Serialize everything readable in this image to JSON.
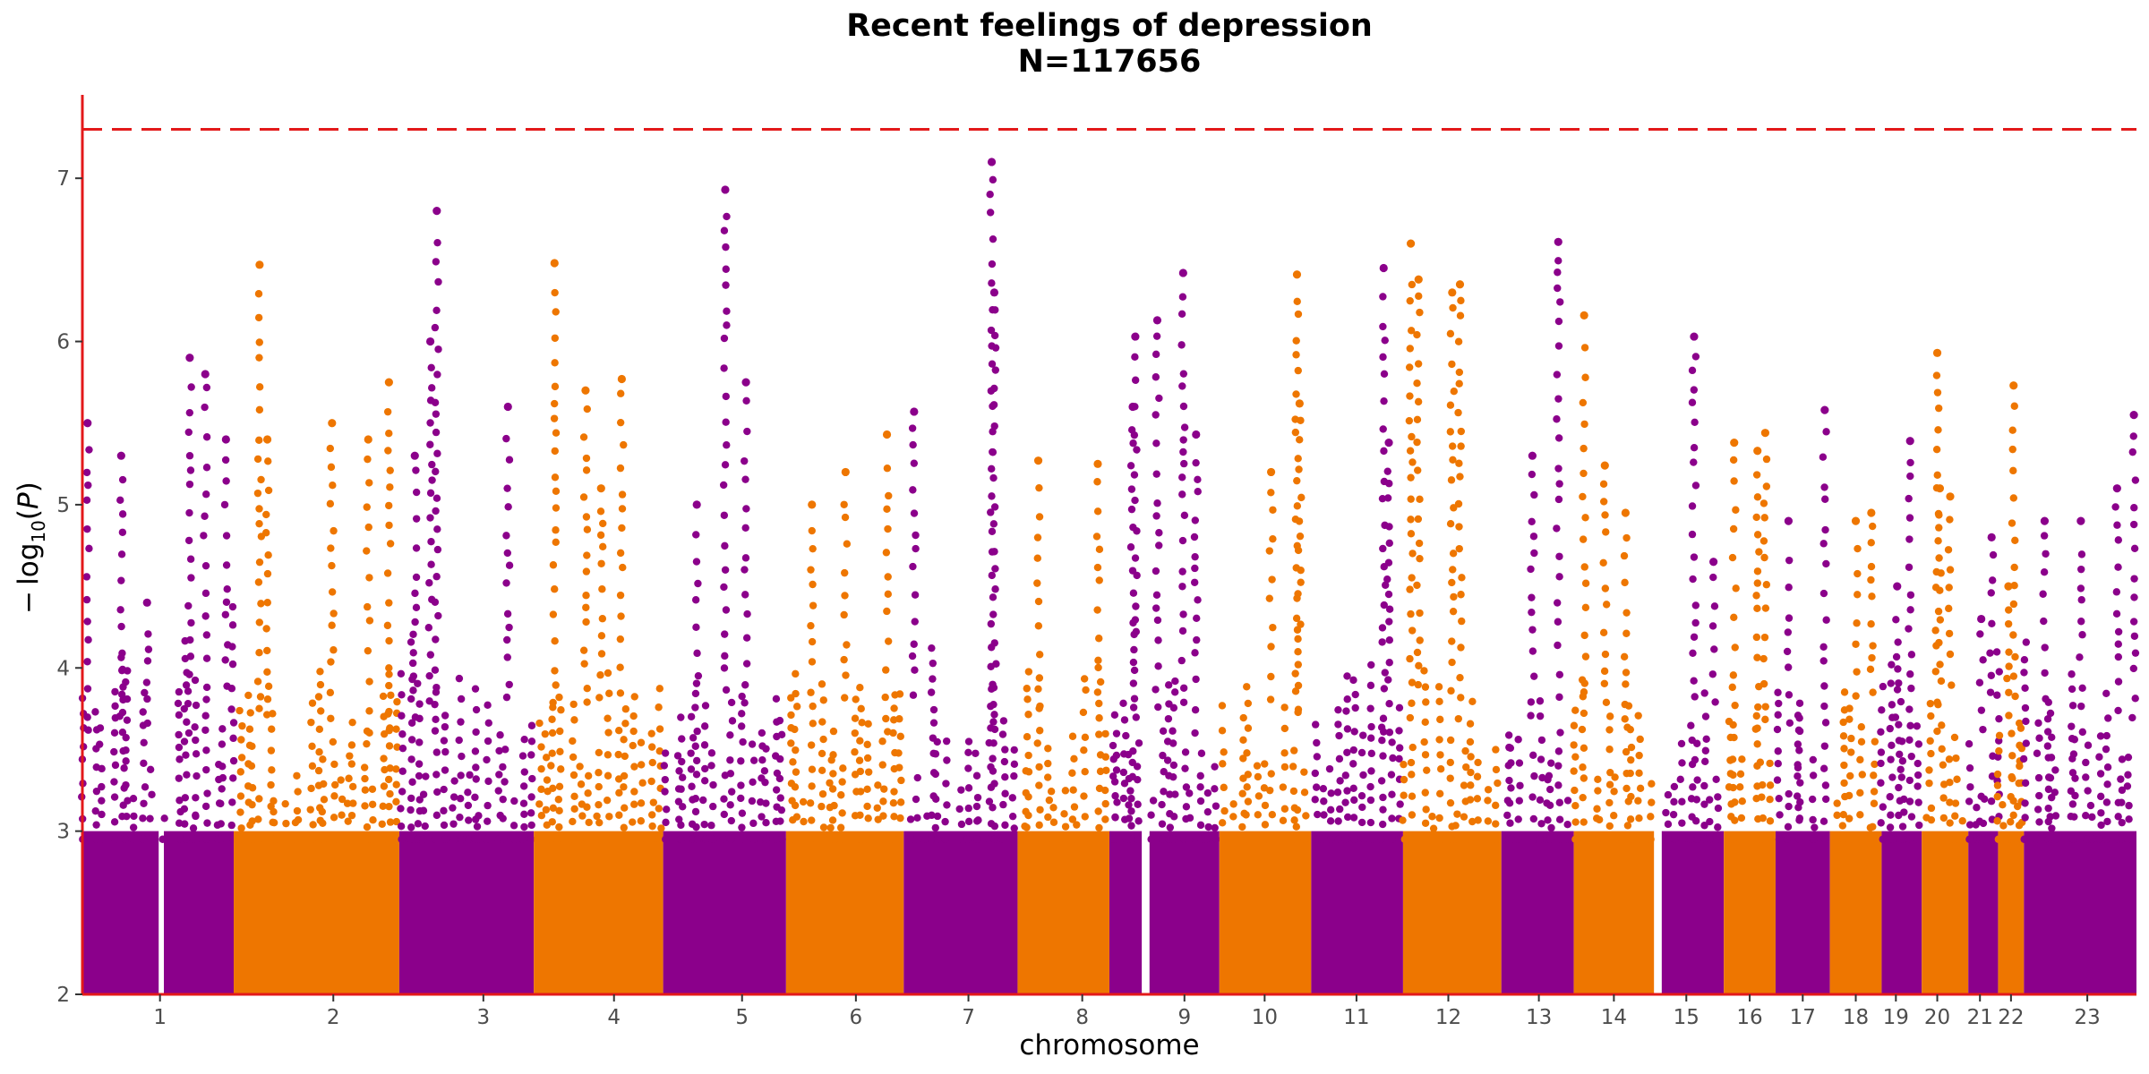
{
  "chart_data": {
    "type": "scatter",
    "title": "Recent feelings of depression",
    "subtitle": "N=117656",
    "xlabel": "chromosome",
    "ylabel": "-log10(P)",
    "ylim": [
      2,
      7.5
    ],
    "yticks": [
      2,
      3,
      4,
      5,
      6,
      7
    ],
    "threshold": 7.3,
    "grid": false,
    "legend": "none",
    "colors": {
      "odd": "#8b008b",
      "even": "#ee7600",
      "threshold": "#e3191a",
      "axis": "#e3191a"
    },
    "chromosomes": [
      {
        "label": "1",
        "start": 0,
        "end": 2.95,
        "peaks": [
          [
            0.2,
            5.5
          ],
          [
            1.5,
            5.3
          ],
          [
            2.5,
            4.4
          ]
        ],
        "color": "odd"
      },
      {
        "label": "2",
        "start": 3.15,
        "end": 5.85,
        "peaks": [
          [
            1.0,
            5.9
          ],
          [
            1.6,
            5.8
          ],
          [
            2.4,
            5.4
          ]
        ],
        "color": "odd"
      },
      {
        "label": "2",
        "start": 5.85,
        "end": 12.25,
        "peaks": [
          [
            1.0,
            6.47
          ],
          [
            1.3,
            5.4
          ],
          [
            3.8,
            5.5
          ],
          [
            5.2,
            5.4
          ],
          [
            6.0,
            5.75
          ]
        ],
        "color": "even"
      },
      {
        "label": "3",
        "start": 12.25,
        "end": 17.45,
        "peaks": [
          [
            0.6,
            5.3
          ],
          [
            1.2,
            6.0
          ],
          [
            1.45,
            6.8
          ],
          [
            4.2,
            5.6
          ]
        ],
        "color": "odd"
      },
      {
        "label": "4",
        "start": 17.45,
        "end": 22.45,
        "peaks": [
          [
            0.8,
            6.48
          ],
          [
            2.0,
            5.7
          ],
          [
            3.4,
            5.77
          ],
          [
            2.6,
            5.1
          ]
        ],
        "color": "even"
      },
      {
        "label": "5",
        "start": 22.45,
        "end": 27.2,
        "peaks": [
          [
            1.3,
            5.0
          ],
          [
            2.4,
            6.93
          ],
          [
            3.2,
            5.75
          ]
        ],
        "color": "odd"
      },
      {
        "label": "6",
        "start": 27.2,
        "end": 31.75,
        "peaks": [
          [
            1.0,
            5.0
          ],
          [
            2.3,
            5.2
          ],
          [
            3.9,
            5.43
          ]
        ],
        "color": "even"
      },
      {
        "label": "7",
        "start": 31.75,
        "end": 36.15,
        "peaks": [
          [
            0.4,
            5.57
          ],
          [
            3.4,
            7.1
          ],
          [
            3.5,
            6.3
          ]
        ],
        "color": "odd"
      },
      {
        "label": "8",
        "start": 36.15,
        "end": 39.7,
        "peaks": [
          [
            0.8,
            5.27
          ],
          [
            3.1,
            5.25
          ]
        ],
        "color": "even"
      },
      {
        "label": "8",
        "start": 39.7,
        "end": 40.95,
        "peaks": [
          [
            1.0,
            6.03
          ],
          [
            0.9,
            5.6
          ]
        ],
        "color": "odd"
      },
      {
        "label": "9",
        "start": 41.25,
        "end": 43.95,
        "peaks": [
          [
            0.3,
            6.13
          ],
          [
            1.3,
            6.42
          ],
          [
            1.8,
            5.43
          ]
        ],
        "color": "odd"
      },
      {
        "label": "10",
        "start": 43.95,
        "end": 47.5,
        "peaks": [
          [
            2.0,
            5.2
          ],
          [
            3.0,
            6.41
          ],
          [
            3.1,
            5.62
          ]
        ],
        "color": "even"
      },
      {
        "label": "11",
        "start": 47.5,
        "end": 51.05,
        "peaks": [
          [
            2.8,
            6.45
          ],
          [
            3.0,
            5.38
          ]
        ],
        "color": "odd"
      },
      {
        "label": "12",
        "start": 51.05,
        "end": 54.85,
        "peaks": [
          [
            0.3,
            6.6
          ],
          [
            0.6,
            6.38
          ],
          [
            1.9,
            6.3
          ],
          [
            2.2,
            6.35
          ]
        ],
        "color": "even"
      },
      {
        "label": "13",
        "start": 54.85,
        "end": 57.65,
        "peaks": [
          [
            1.2,
            5.3
          ],
          [
            2.2,
            6.61
          ]
        ],
        "color": "odd"
      },
      {
        "label": "14",
        "start": 57.65,
        "end": 60.75,
        "peaks": [
          [
            0.4,
            6.16
          ],
          [
            1.2,
            5.24
          ],
          [
            2.0,
            4.95
          ]
        ],
        "color": "even"
      },
      {
        "label": "15",
        "start": 61.05,
        "end": 63.45,
        "peaks": [
          [
            1.25,
            6.03
          ],
          [
            2.0,
            4.65
          ]
        ],
        "color": "odd"
      },
      {
        "label": "16",
        "start": 63.45,
        "end": 65.45,
        "peaks": [
          [
            0.4,
            5.38
          ],
          [
            1.3,
            5.33
          ],
          [
            1.6,
            5.44
          ]
        ],
        "color": "even"
      },
      {
        "label": "17",
        "start": 65.45,
        "end": 67.55,
        "peaks": [
          [
            0.5,
            4.9
          ],
          [
            1.9,
            5.58
          ]
        ],
        "color": "odd"
      },
      {
        "label": "18",
        "start": 67.55,
        "end": 69.55,
        "peaks": [
          [
            1.0,
            4.9
          ],
          [
            1.6,
            4.95
          ]
        ],
        "color": "even"
      },
      {
        "label": "19",
        "start": 69.55,
        "end": 71.1,
        "peaks": [
          [
            0.6,
            4.5
          ],
          [
            1.1,
            5.39
          ]
        ],
        "color": "odd"
      },
      {
        "label": "20",
        "start": 71.1,
        "end": 72.9,
        "peaks": [
          [
            0.6,
            5.93
          ],
          [
            0.7,
            5.1
          ],
          [
            1.1,
            5.05
          ]
        ],
        "color": "even"
      },
      {
        "label": "21",
        "start": 72.9,
        "end": 74.05,
        "peaks": [
          [
            0.5,
            4.3
          ],
          [
            0.9,
            4.8
          ]
        ],
        "color": "odd"
      },
      {
        "label": "22",
        "start": 74.05,
        "end": 75.05,
        "peaks": [
          [
            0.6,
            5.73
          ],
          [
            0.4,
            4.5
          ]
        ],
        "color": "even"
      },
      {
        "label": "23",
        "start": 75.05,
        "end": 79.4,
        "peaks": [
          [
            0.8,
            4.9
          ],
          [
            2.2,
            4.9
          ],
          [
            3.6,
            5.1
          ],
          [
            4.25,
            5.55
          ]
        ],
        "color": "odd"
      }
    ],
    "xticks": [
      {
        "label": "1",
        "x": 3.0
      },
      {
        "label": "2",
        "x": 9.7
      },
      {
        "label": "3",
        "x": 15.5
      },
      {
        "label": "4",
        "x": 20.55
      },
      {
        "label": "5",
        "x": 25.5
      },
      {
        "label": "6",
        "x": 29.9
      },
      {
        "label": "7",
        "x": 34.25
      },
      {
        "label": "8",
        "x": 38.65
      },
      {
        "label": "9",
        "x": 42.6
      },
      {
        "label": "10",
        "x": 45.7
      },
      {
        "label": "11",
        "x": 49.25
      },
      {
        "label": "12",
        "x": 52.8
      },
      {
        "label": "13",
        "x": 56.3
      },
      {
        "label": "14",
        "x": 59.2
      },
      {
        "label": "15",
        "x": 62.0
      },
      {
        "label": "16",
        "x": 64.45
      },
      {
        "label": "17",
        "x": 66.5
      },
      {
        "label": "18",
        "x": 68.55
      },
      {
        "label": "19",
        "x": 70.1
      },
      {
        "label": "20",
        "x": 71.7
      },
      {
        "label": "21",
        "x": 73.35
      },
      {
        "label": "22",
        "x": 74.55
      },
      {
        "label": "23",
        "x": 77.5
      }
    ],
    "xrange": [
      0,
      79.4
    ]
  }
}
